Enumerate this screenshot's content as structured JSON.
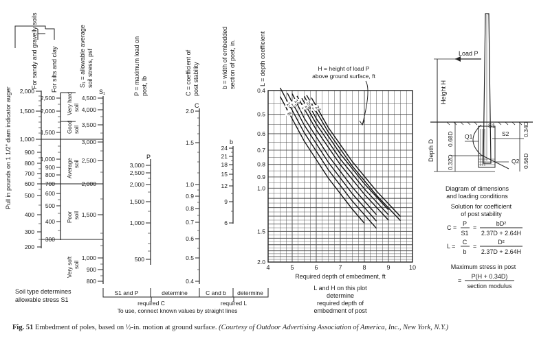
{
  "nomograph": {
    "pull_axis": {
      "label": "Pull in pounds on 1 1/2\" diam indicator auger",
      "ticks": [
        "2,000",
        "1,500",
        "1,000",
        "900",
        "800",
        "700",
        "600",
        "500",
        "400",
        "300",
        "200"
      ]
    },
    "soil_headers": {
      "sandy": "For sandy and gravelly soils",
      "silts": "For silts and clay"
    },
    "sandy_ticks": [
      "2,500",
      "2,000",
      "1,500",
      "1,000",
      "900",
      "800",
      "700",
      "600",
      "500",
      "400",
      "300"
    ],
    "soil_classes": [
      "Very hard soil",
      "Good soil",
      "Average soil",
      "Poor soil",
      "Very soft soil"
    ],
    "s1_axis": {
      "label": "S1 = allowable average soil stress, psf",
      "symbol": "S1",
      "ticks": [
        "4,500",
        "4,000",
        "3,500",
        "3,000",
        "2,500",
        "2,000",
        "1,500",
        "1,000",
        "900",
        "800"
      ]
    },
    "p_axis": {
      "label": "P = maximum load on post, lb",
      "symbol": "P",
      "ticks": [
        "3,000",
        "2,500",
        "2,000",
        "1,500",
        "1,000",
        "500"
      ]
    },
    "c_axis": {
      "label": "C = coefficient of post stability",
      "symbol": "C",
      "ticks": [
        "2.0",
        "1.5",
        "1.0",
        "0.9",
        "0.8",
        "0.7",
        "0.6",
        "0.5",
        "0.4"
      ]
    },
    "b_axis": {
      "label": "b = width of embedded section of post, in.",
      "symbol": "b",
      "ticks": [
        "24",
        "21",
        "18",
        "15",
        "12",
        "9",
        "6"
      ]
    },
    "l_axis_label": "L = depth coefficient",
    "soil_note": [
      "Soil type determines",
      "allowable stress S1"
    ],
    "bracket_labels": {
      "s1_and_p": "S1 and P",
      "determine_1": "determine",
      "required_c": "required C",
      "c_and_b": "C and b",
      "determine_2": "determine",
      "required_l": "required L"
    },
    "straight_lines_note": "To use, connect known values by straight lines"
  },
  "chart_data": {
    "type": "line",
    "title": "H = height of load P above ground surface, ft",
    "xlabel": "Required depth of embedment, ft",
    "ylabel": "L = depth coefficient",
    "xlim": [
      4,
      10
    ],
    "ylim": [
      0.4,
      2.0
    ],
    "y_scale": "log",
    "x_ticks": [
      "4",
      "5",
      "6",
      "7",
      "8",
      "9",
      "10"
    ],
    "y_ticks": [
      "0.4",
      "0.5",
      "0.6",
      "0.7",
      "0.8",
      "0.9",
      "1.0",
      "1.5",
      "2.0"
    ],
    "series": [
      {
        "name": "8",
        "values": [
          [
            4.5,
            0.423
          ],
          [
            5.5,
            0.643
          ],
          [
            6.5,
            0.909
          ],
          [
            7.5,
            1.218
          ],
          [
            8.0,
            1.389
          ]
        ]
      },
      {
        "name": "10",
        "values": [
          [
            4.5,
            0.39
          ],
          [
            5.5,
            0.594
          ],
          [
            6.5,
            0.841
          ],
          [
            7.5,
            1.129
          ],
          [
            8.5,
            1.457
          ]
        ]
      },
      {
        "name": "12",
        "values": [
          [
            4.8,
            0.41
          ],
          [
            5.5,
            0.553
          ],
          [
            6.5,
            0.784
          ],
          [
            7.5,
            1.054
          ],
          [
            8.5,
            1.362
          ]
        ]
      },
      {
        "name": "14",
        "values": [
          [
            5.0,
            0.412
          ],
          [
            5.5,
            0.518
          ],
          [
            6.5,
            0.736
          ],
          [
            7.5,
            0.991
          ],
          [
            8.5,
            1.282
          ]
        ]
      },
      {
        "name": "16",
        "values": [
          [
            5.2,
            0.421
          ],
          [
            6.0,
            0.578
          ],
          [
            7.0,
            0.802
          ],
          [
            8.0,
            1.059
          ],
          [
            9.0,
            1.35
          ]
        ]
      },
      {
        "name": "18",
        "values": [
          [
            5.4,
            0.43
          ],
          [
            6.0,
            0.547
          ],
          [
            7.0,
            0.761
          ],
          [
            8.0,
            1.006
          ],
          [
            9.0,
            1.284
          ]
        ]
      },
      {
        "name": "20",
        "values": [
          [
            5.5,
            0.422
          ],
          [
            6.0,
            0.52
          ],
          [
            7.0,
            0.724
          ],
          [
            8.0,
            0.959
          ],
          [
            9.0,
            1.225
          ]
        ]
      },
      {
        "name": "22",
        "values": [
          [
            5.6,
            0.418
          ],
          [
            6.5,
            0.59
          ],
          [
            7.5,
            0.813
          ],
          [
            8.5,
            1.068
          ],
          [
            9.5,
            1.356
          ]
        ]
      },
      {
        "name": "24",
        "values": [
          [
            5.8,
            0.428
          ],
          [
            6.5,
            0.566
          ],
          [
            7.5,
            0.78
          ],
          [
            8.5,
            1.026
          ],
          [
            9.5,
            1.304
          ]
        ]
      }
    ],
    "notes": [
      "L and H on this plot",
      "determine",
      "required depth of",
      "embedment of post"
    ]
  },
  "diagram": {
    "load_label": "Load P",
    "height_label": "Height H",
    "depth_label": "Depth D",
    "dims": [
      "0.68D",
      "0.32D",
      "0.34D",
      "0.56D"
    ],
    "forces": [
      "S1",
      "S2",
      "Q1",
      "Q2"
    ],
    "title": [
      "Diagram of dimensions",
      "and loading conditions"
    ],
    "solution_title": [
      "Solution for coefficient",
      "of post stability"
    ],
    "c_formula": {
      "lhs": "C =",
      "n1": "P",
      "d1": "S1",
      "eq": "=",
      "n2": "bD²",
      "d2": "2.37D + 2.64H"
    },
    "l_formula": {
      "lhs": "L =",
      "n1": "C",
      "d1": "b",
      "eq": "=",
      "n2": "D²",
      "d2": "2.37D + 2.64H"
    },
    "stress_title": "Maximum stress in post",
    "stress_formula": {
      "lhs": "=",
      "num": "P(H + 0.34D)",
      "den": "section modulus"
    }
  },
  "caption": {
    "figure": "Fig. 51",
    "text": "Embedment of poles, based on ½-in. motion at ground surface.",
    "credit": "(Courtesy of Outdoor Advertising Association of America, Inc., New York, N.Y.)"
  }
}
